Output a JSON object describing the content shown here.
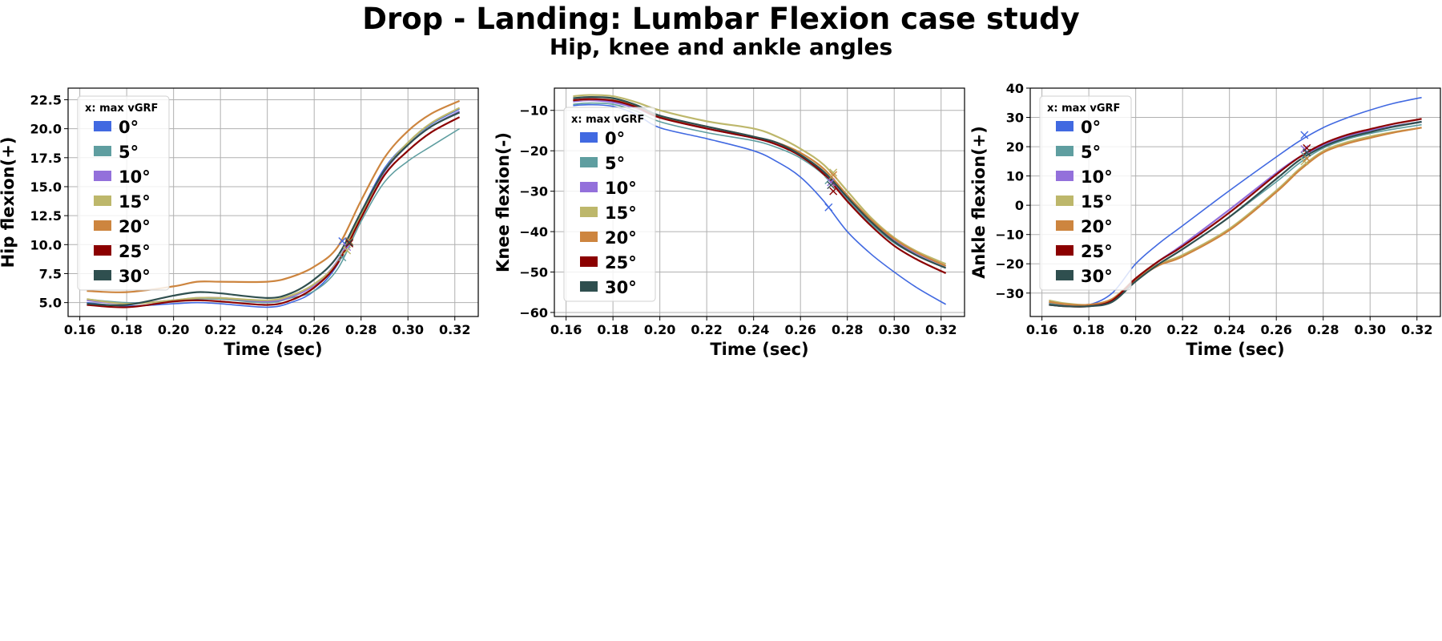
{
  "figure": {
    "title": "Drop - Landing: Lumbar Flexion case study",
    "subtitle": "Hip, knee and ankle angles"
  },
  "colors": {
    "0°": "#4169e1",
    "5°": "#5f9ea0",
    "10°": "#9370db",
    "15°": "#bdb76b",
    "20°": "#cd853f",
    "25°": "#8b0000",
    "30°": "#2f4f4f"
  },
  "chart_data": [
    {
      "type": "line",
      "title": "",
      "xlabel": "Time (sec)",
      "ylabel": "Hip flexion(+)",
      "xlim": [
        0.155,
        0.33
      ],
      "ylim": [
        3.8,
        23.5
      ],
      "xticks": [
        0.16,
        0.18,
        0.2,
        0.22,
        0.24,
        0.26,
        0.28,
        0.3,
        0.32
      ],
      "xtick_labels": [
        "0.16",
        "0.18",
        "0.20",
        "0.22",
        "0.24",
        "0.26",
        "0.28",
        "0.30",
        "0.32"
      ],
      "yticks": [
        5.0,
        7.5,
        10.0,
        12.5,
        15.0,
        17.5,
        20.0,
        22.5
      ],
      "ytick_labels": [
        "5.0",
        "7.5",
        "10.0",
        "12.5",
        "15.0",
        "17.5",
        "20.0",
        "22.5"
      ],
      "grid": true,
      "legend": {
        "title": "x: max vGRF",
        "placement": "upper-left"
      },
      "series": [
        {
          "name": "0°",
          "x": [
            0.163,
            0.18,
            0.2,
            0.21,
            0.22,
            0.24,
            0.25,
            0.26,
            0.27,
            0.28,
            0.29,
            0.3,
            0.31,
            0.322
          ],
          "y": [
            5.0,
            4.7,
            4.9,
            5.0,
            4.9,
            4.6,
            5.0,
            6.0,
            8.3,
            12.8,
            16.6,
            18.8,
            20.4,
            21.7
          ],
          "marker": [
            0.272,
            10.3
          ]
        },
        {
          "name": "5°",
          "x": [
            0.163,
            0.18,
            0.2,
            0.21,
            0.22,
            0.24,
            0.25,
            0.26,
            0.27,
            0.28,
            0.29,
            0.3,
            0.31,
            0.322
          ],
          "y": [
            5.3,
            5.0,
            5.1,
            5.3,
            5.3,
            5.0,
            5.4,
            6.0,
            7.9,
            12.0,
            15.4,
            17.2,
            18.5,
            20.0
          ],
          "marker": [
            0.272,
            8.9
          ]
        },
        {
          "name": "10°",
          "x": [
            0.163,
            0.18,
            0.2,
            0.21,
            0.22,
            0.24,
            0.25,
            0.26,
            0.27,
            0.28,
            0.29,
            0.3,
            0.31,
            0.322
          ],
          "y": [
            5.2,
            4.9,
            5.2,
            5.4,
            5.4,
            5.1,
            5.5,
            6.5,
            8.6,
            12.5,
            16.3,
            18.6,
            20.2,
            21.5
          ],
          "marker": [
            0.274,
            9.8
          ]
        },
        {
          "name": "15°",
          "x": [
            0.163,
            0.18,
            0.2,
            0.21,
            0.22,
            0.24,
            0.25,
            0.26,
            0.27,
            0.28,
            0.29,
            0.3,
            0.31,
            0.322
          ],
          "y": [
            5.3,
            4.9,
            5.2,
            5.4,
            5.4,
            5.2,
            5.6,
            6.6,
            8.5,
            12.6,
            16.4,
            18.8,
            20.5,
            21.8
          ],
          "marker": [
            0.274,
            9.5
          ]
        },
        {
          "name": "20°",
          "x": [
            0.163,
            0.18,
            0.2,
            0.21,
            0.22,
            0.24,
            0.25,
            0.26,
            0.27,
            0.28,
            0.29,
            0.3,
            0.31,
            0.322
          ],
          "y": [
            6.0,
            5.9,
            6.4,
            6.8,
            6.8,
            6.8,
            7.2,
            8.1,
            9.8,
            13.8,
            17.5,
            19.8,
            21.3,
            22.4
          ],
          "marker": [
            0.275,
            10.3
          ]
        },
        {
          "name": "25°",
          "x": [
            0.163,
            0.18,
            0.2,
            0.21,
            0.22,
            0.24,
            0.25,
            0.26,
            0.27,
            0.28,
            0.29,
            0.3,
            0.31,
            0.322
          ],
          "y": [
            4.8,
            4.6,
            5.1,
            5.2,
            5.1,
            4.8,
            5.2,
            6.3,
            8.4,
            12.3,
            16.0,
            18.1,
            19.7,
            21.0
          ],
          "marker": [
            0.275,
            10.1
          ]
        },
        {
          "name": "30°",
          "x": [
            0.163,
            0.18,
            0.2,
            0.21,
            0.22,
            0.24,
            0.25,
            0.26,
            0.27,
            0.28,
            0.29,
            0.3,
            0.31,
            0.322
          ],
          "y": [
            4.9,
            4.8,
            5.6,
            5.9,
            5.8,
            5.4,
            5.8,
            7.0,
            9.0,
            12.8,
            16.4,
            18.6,
            20.2,
            21.4
          ],
          "marker": [
            0.275,
            10.2
          ]
        }
      ]
    },
    {
      "type": "line",
      "title": "",
      "xlabel": "Time (sec)",
      "ylabel": "Knee flexion(-)",
      "xlim": [
        0.155,
        0.33
      ],
      "ylim": [
        -61,
        -4.5
      ],
      "xticks": [
        0.16,
        0.18,
        0.2,
        0.22,
        0.24,
        0.26,
        0.28,
        0.3,
        0.32
      ],
      "xtick_labels": [
        "0.16",
        "0.18",
        "0.20",
        "0.22",
        "0.24",
        "0.26",
        "0.28",
        "0.30",
        "0.32"
      ],
      "yticks": [
        -60,
        -50,
        -40,
        -30,
        -20,
        -10
      ],
      "ytick_labels": [
        "−60",
        "−50",
        "−40",
        "−30",
        "−20",
        "−10"
      ],
      "grid": true,
      "legend": {
        "title": "x: max vGRF",
        "placement": "upper-left"
      },
      "series": [
        {
          "name": "0°",
          "x": [
            0.163,
            0.17,
            0.18,
            0.19,
            0.2,
            0.22,
            0.24,
            0.25,
            0.26,
            0.27,
            0.28,
            0.29,
            0.3,
            0.31,
            0.322
          ],
          "y": [
            -8.8,
            -8.6,
            -9.0,
            -11.0,
            -14.3,
            -17.0,
            -20.0,
            -22.7,
            -26.5,
            -32.5,
            -40.0,
            -45.5,
            -50.0,
            -54.0,
            -58.0
          ],
          "marker": [
            0.272,
            -34.0
          ]
        },
        {
          "name": "5°",
          "x": [
            0.163,
            0.17,
            0.18,
            0.19,
            0.2,
            0.22,
            0.24,
            0.25,
            0.26,
            0.27,
            0.28,
            0.29,
            0.3,
            0.31,
            0.322
          ],
          "y": [
            -8.5,
            -8.2,
            -8.5,
            -10.2,
            -12.8,
            -15.5,
            -17.5,
            -19.2,
            -21.8,
            -26.0,
            -32.0,
            -38.0,
            -42.8,
            -46.0,
            -49.0
          ],
          "marker": [
            0.272,
            -27.3
          ]
        },
        {
          "name": "10°",
          "x": [
            0.163,
            0.17,
            0.18,
            0.19,
            0.2,
            0.22,
            0.24,
            0.25,
            0.26,
            0.27,
            0.28,
            0.29,
            0.3,
            0.31,
            0.322
          ],
          "y": [
            -7.8,
            -7.5,
            -8.0,
            -9.5,
            -11.8,
            -14.5,
            -16.8,
            -18.5,
            -21.2,
            -25.5,
            -31.5,
            -37.5,
            -42.0,
            -45.5,
            -48.5
          ],
          "marker": [
            0.273,
            -27.8
          ]
        },
        {
          "name": "15°",
          "x": [
            0.163,
            0.17,
            0.18,
            0.19,
            0.2,
            0.22,
            0.24,
            0.25,
            0.26,
            0.27,
            0.28,
            0.29,
            0.3,
            0.31,
            0.322
          ],
          "y": [
            -6.5,
            -6.2,
            -6.5,
            -8.0,
            -10.0,
            -12.7,
            -14.5,
            -16.5,
            -19.5,
            -23.5,
            -30.0,
            -36.5,
            -41.5,
            -45.0,
            -48.0
          ],
          "marker": [
            0.274,
            -25.4
          ]
        },
        {
          "name": "20°",
          "x": [
            0.163,
            0.17,
            0.18,
            0.19,
            0.2,
            0.22,
            0.24,
            0.25,
            0.26,
            0.27,
            0.28,
            0.29,
            0.3,
            0.31,
            0.322
          ],
          "y": [
            -7.5,
            -7.3,
            -7.5,
            -9.0,
            -11.5,
            -14.0,
            -16.5,
            -18.0,
            -20.5,
            -24.5,
            -31.0,
            -37.0,
            -41.8,
            -45.3,
            -48.5
          ],
          "marker": [
            0.274,
            -26.0
          ]
        },
        {
          "name": "25°",
          "x": [
            0.163,
            0.17,
            0.18,
            0.19,
            0.2,
            0.22,
            0.24,
            0.25,
            0.26,
            0.27,
            0.28,
            0.29,
            0.3,
            0.31,
            0.322
          ],
          "y": [
            -7.5,
            -7.2,
            -7.6,
            -9.2,
            -11.8,
            -14.5,
            -16.8,
            -18.5,
            -21.3,
            -25.8,
            -32.5,
            -38.5,
            -43.5,
            -47.0,
            -50.3
          ],
          "marker": [
            0.274,
            -30.0
          ]
        },
        {
          "name": "30°",
          "x": [
            0.163,
            0.17,
            0.18,
            0.19,
            0.2,
            0.22,
            0.24,
            0.25,
            0.26,
            0.27,
            0.28,
            0.29,
            0.3,
            0.31,
            0.322
          ],
          "y": [
            -7.0,
            -6.7,
            -7.0,
            -8.7,
            -11.3,
            -14.0,
            -16.5,
            -18.0,
            -21.0,
            -25.2,
            -31.5,
            -37.5,
            -42.5,
            -46.0,
            -49.0
          ],
          "marker": [
            0.273,
            -28.5
          ]
        }
      ]
    },
    {
      "type": "line",
      "title": "",
      "xlabel": "Time (sec)",
      "ylabel": "Ankle flexion(+)",
      "xlim": [
        0.155,
        0.33
      ],
      "ylim": [
        -38,
        40
      ],
      "xticks": [
        0.16,
        0.18,
        0.2,
        0.22,
        0.24,
        0.26,
        0.28,
        0.3,
        0.32
      ],
      "xtick_labels": [
        "0.16",
        "0.18",
        "0.20",
        "0.22",
        "0.24",
        "0.26",
        "0.28",
        "0.30",
        "0.32"
      ],
      "yticks": [
        -30,
        -20,
        -10,
        0,
        10,
        20,
        30,
        40
      ],
      "ytick_labels": [
        "−30",
        "−20",
        "−10",
        "0",
        "10",
        "20",
        "30",
        "40"
      ],
      "grid": true,
      "legend": {
        "title": "x: max vGRF",
        "placement": "upper-left"
      },
      "series": [
        {
          "name": "0°",
          "x": [
            0.163,
            0.17,
            0.18,
            0.19,
            0.2,
            0.21,
            0.22,
            0.24,
            0.26,
            0.27,
            0.28,
            0.29,
            0.3,
            0.31,
            0.322
          ],
          "y": [
            -33.5,
            -34.0,
            -34.0,
            -30.0,
            -20.0,
            -13.0,
            -7.0,
            5.0,
            16.5,
            22.0,
            26.5,
            29.8,
            32.5,
            34.8,
            36.8
          ],
          "marker": [
            0.272,
            24.0
          ]
        },
        {
          "name": "5°",
          "x": [
            0.163,
            0.17,
            0.18,
            0.19,
            0.2,
            0.21,
            0.22,
            0.24,
            0.26,
            0.27,
            0.28,
            0.29,
            0.3,
            0.31,
            0.322
          ],
          "y": [
            -33.5,
            -34.0,
            -34.3,
            -32.5,
            -26.0,
            -20.0,
            -15.0,
            -4.0,
            8.0,
            14.5,
            19.5,
            22.5,
            24.5,
            26.0,
            27.5
          ],
          "marker": [
            0.272,
            17.0
          ]
        },
        {
          "name": "10°",
          "x": [
            0.163,
            0.17,
            0.18,
            0.19,
            0.2,
            0.21,
            0.22,
            0.24,
            0.26,
            0.27,
            0.28,
            0.29,
            0.3,
            0.31,
            0.322
          ],
          "y": [
            -33.0,
            -33.8,
            -34.0,
            -32.0,
            -25.0,
            -19.0,
            -13.5,
            -1.5,
            11.0,
            16.5,
            20.5,
            23.5,
            25.5,
            27.0,
            28.5
          ],
          "marker": [
            0.272,
            19.2
          ]
        },
        {
          "name": "15°",
          "x": [
            0.163,
            0.17,
            0.18,
            0.19,
            0.2,
            0.21,
            0.22,
            0.24,
            0.26,
            0.27,
            0.28,
            0.29,
            0.3,
            0.31,
            0.322
          ],
          "y": [
            -32.5,
            -33.5,
            -34.0,
            -32.0,
            -25.0,
            -20.0,
            -17.0,
            -8.0,
            5.0,
            12.5,
            18.5,
            21.5,
            23.5,
            25.0,
            26.5
          ],
          "marker": [
            0.272,
            15.0
          ]
        },
        {
          "name": "20°",
          "x": [
            0.163,
            0.17,
            0.18,
            0.19,
            0.2,
            0.21,
            0.22,
            0.24,
            0.26,
            0.27,
            0.28,
            0.29,
            0.3,
            0.31,
            0.322
          ],
          "y": [
            -33.0,
            -33.8,
            -34.0,
            -32.0,
            -25.5,
            -20.5,
            -17.5,
            -8.5,
            4.5,
            12.0,
            18.0,
            21.0,
            23.0,
            24.8,
            26.5
          ],
          "marker": [
            0.273,
            16.0
          ]
        },
        {
          "name": "25°",
          "x": [
            0.163,
            0.17,
            0.18,
            0.19,
            0.2,
            0.21,
            0.22,
            0.24,
            0.26,
            0.27,
            0.28,
            0.29,
            0.3,
            0.31,
            0.322
          ],
          "y": [
            -34.0,
            -34.5,
            -34.5,
            -32.5,
            -25.0,
            -19.0,
            -14.0,
            -2.5,
            10.5,
            16.5,
            21.0,
            24.0,
            26.0,
            27.8,
            29.5
          ],
          "marker": [
            0.273,
            19.5
          ]
        },
        {
          "name": "30°",
          "x": [
            0.163,
            0.17,
            0.18,
            0.19,
            0.2,
            0.21,
            0.22,
            0.24,
            0.26,
            0.27,
            0.28,
            0.29,
            0.3,
            0.31,
            0.322
          ],
          "y": [
            -34.0,
            -34.5,
            -34.5,
            -33.0,
            -26.0,
            -20.0,
            -15.0,
            -4.0,
            9.0,
            15.5,
            20.0,
            23.0,
            25.0,
            26.8,
            28.5
          ],
          "marker": [
            0.273,
            18.0
          ]
        }
      ]
    }
  ]
}
